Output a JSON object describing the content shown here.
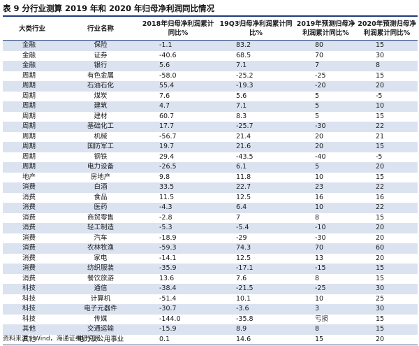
{
  "title": "表 9 分行业测算 2019 年和 2020 年归母净利润同比情况",
  "headers": {
    "category": "大类行业",
    "industry": "行业名称",
    "y2018": "2018年归母净利润累计同比%",
    "q3_2019": "19Q3归母净利润累计同比%",
    "f2019": "2019年预测归母净利润累计同比%",
    "f2020": "2020年预测归母净利润累计同比%"
  },
  "rows": [
    {
      "category": "金融",
      "industry": "保险",
      "y2018": "-1.1",
      "q3_2019": "83.2",
      "f2019": "80",
      "f2020": "15"
    },
    {
      "category": "金融",
      "industry": "证券",
      "y2018": "-40.6",
      "q3_2019": "68.5",
      "f2019": "70",
      "f2020": "30"
    },
    {
      "category": "金融",
      "industry": "银行",
      "y2018": "5.6",
      "q3_2019": "7.1",
      "f2019": "7",
      "f2020": "8"
    },
    {
      "category": "周期",
      "industry": "有色金属",
      "y2018": "-58.0",
      "q3_2019": "-25.2",
      "f2019": "-25",
      "f2020": "15"
    },
    {
      "category": "周期",
      "industry": "石油石化",
      "y2018": "55.4",
      "q3_2019": "-19.3",
      "f2019": "-20",
      "f2020": "20"
    },
    {
      "category": "周期",
      "industry": "煤炭",
      "y2018": "7.6",
      "q3_2019": "5.6",
      "f2019": "5",
      "f2020": "-5"
    },
    {
      "category": "周期",
      "industry": "建筑",
      "y2018": "4.7",
      "q3_2019": "7.1",
      "f2019": "5",
      "f2020": "10"
    },
    {
      "category": "周期",
      "industry": "建材",
      "y2018": "60.7",
      "q3_2019": "8.3",
      "f2019": "5",
      "f2020": "15"
    },
    {
      "category": "周期",
      "industry": "基础化工",
      "y2018": "17.7",
      "q3_2019": "-25.7",
      "f2019": "-30",
      "f2020": "22"
    },
    {
      "category": "周期",
      "industry": "机械",
      "y2018": "-56.7",
      "q3_2019": "21.4",
      "f2019": "20",
      "f2020": "21"
    },
    {
      "category": "周期",
      "industry": "国防军工",
      "y2018": "19.7",
      "q3_2019": "21.6",
      "f2019": "20",
      "f2020": "15"
    },
    {
      "category": "周期",
      "industry": "钢铁",
      "y2018": "29.4",
      "q3_2019": "-43.5",
      "f2019": "-40",
      "f2020": "-5"
    },
    {
      "category": "周期",
      "industry": "电力设备",
      "y2018": "-26.5",
      "q3_2019": "6.1",
      "f2019": "5",
      "f2020": "20"
    },
    {
      "category": "地产",
      "industry": "房地产",
      "y2018": "9.8",
      "q3_2019": "11.8",
      "f2019": "10",
      "f2020": "15"
    },
    {
      "category": "消费",
      "industry": "白酒",
      "y2018": "33.5",
      "q3_2019": "22.7",
      "f2019": "23",
      "f2020": "22"
    },
    {
      "category": "消费",
      "industry": "食品",
      "y2018": "11.5",
      "q3_2019": "12.5",
      "f2019": "16",
      "f2020": "16"
    },
    {
      "category": "消费",
      "industry": "医药",
      "y2018": "-4.3",
      "q3_2019": "6.4",
      "f2019": "10",
      "f2020": "22"
    },
    {
      "category": "消费",
      "industry": "商贸零售",
      "y2018": "-2.8",
      "q3_2019": "7",
      "f2019": "8",
      "f2020": "15"
    },
    {
      "category": "消费",
      "industry": "轻工制造",
      "y2018": "-5.3",
      "q3_2019": "-5.4",
      "f2019": "-10",
      "f2020": "20"
    },
    {
      "category": "消费",
      "industry": "汽车",
      "y2018": "-18.9",
      "q3_2019": "-29",
      "f2019": "-30",
      "f2020": "20"
    },
    {
      "category": "消费",
      "industry": "农林牧渔",
      "y2018": "-59.3",
      "q3_2019": "74.3",
      "f2019": "70",
      "f2020": "60"
    },
    {
      "category": "消费",
      "industry": "家电",
      "y2018": "-14.1",
      "q3_2019": "12.5",
      "f2019": "13",
      "f2020": "20"
    },
    {
      "category": "消费",
      "industry": "纺织服装",
      "y2018": "-35.9",
      "q3_2019": "-17.1",
      "f2019": "-15",
      "f2020": "15"
    },
    {
      "category": "消费",
      "industry": "餐饮旅游",
      "y2018": "13.6",
      "q3_2019": "7.6",
      "f2019": "8",
      "f2020": "15"
    },
    {
      "category": "科技",
      "industry": "通信",
      "y2018": "-38.4",
      "q3_2019": "-21.5",
      "f2019": "-25",
      "f2020": "30"
    },
    {
      "category": "科技",
      "industry": "计算机",
      "y2018": "-51.4",
      "q3_2019": "10.1",
      "f2019": "10",
      "f2020": "25"
    },
    {
      "category": "科技",
      "industry": "电子元器件",
      "y2018": "-30.7",
      "q3_2019": "-3.6",
      "f2019": "3",
      "f2020": "30"
    },
    {
      "category": "科技",
      "industry": "传媒",
      "y2018": "-144.0",
      "q3_2019": "-35.8",
      "f2019": "亏损",
      "f2020": "15"
    },
    {
      "category": "其他",
      "industry": "交通运输",
      "y2018": "-15.9",
      "q3_2019": "8.9",
      "f2019": "8",
      "f2020": "15"
    },
    {
      "category": "其他",
      "industry": "电力及公用事业",
      "y2018": "0.1",
      "q3_2019": "14.6",
      "f2019": "15",
      "f2020": "20"
    }
  ],
  "source": "资料来源：Wind，海通证券研究所"
}
